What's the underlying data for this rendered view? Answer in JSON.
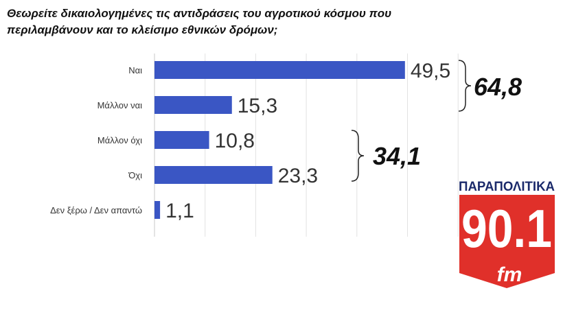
{
  "title": "Θεωρείτε δικαιολογημένες τις αντιδράσεις του αγροτικού κόσμου που περιλαμβάνουν και το κλείσιμο εθνικών δρόμων;",
  "chart_data": {
    "type": "bar",
    "orientation": "horizontal",
    "title": "Θεωρείτε δικαιολογημένες τις αντιδράσεις του αγροτικού κόσμου που περιλαμβάνουν και το κλείσιμο εθνικών δρόμων;",
    "categories": [
      "Ναι",
      "Μάλλον ναι",
      "Μάλλον όχι",
      "Όχι",
      "Δεν ξέρω / Δεν απαντώ"
    ],
    "values": [
      49.5,
      15.3,
      10.8,
      23.3,
      1.1
    ],
    "value_labels": [
      "49,5",
      "15,3",
      "10,8",
      "23,3",
      "1,1"
    ],
    "xlim": [
      0,
      60
    ],
    "grid": true,
    "bar_color": "#3a56c4",
    "annotations": [
      {
        "text": "64,8",
        "groups": [
          "Ναι",
          "Μάλλον ναι"
        ]
      },
      {
        "text": "34,1",
        "groups": [
          "Μάλλον όχι",
          "Όχι"
        ]
      }
    ]
  },
  "logo": {
    "top": "ΠΑΡΑΠΟΛΙΤΙΚΑ",
    "number": "90.1",
    "suffix": "fm",
    "red": "#e0302a",
    "navy": "#1b2a6b"
  }
}
